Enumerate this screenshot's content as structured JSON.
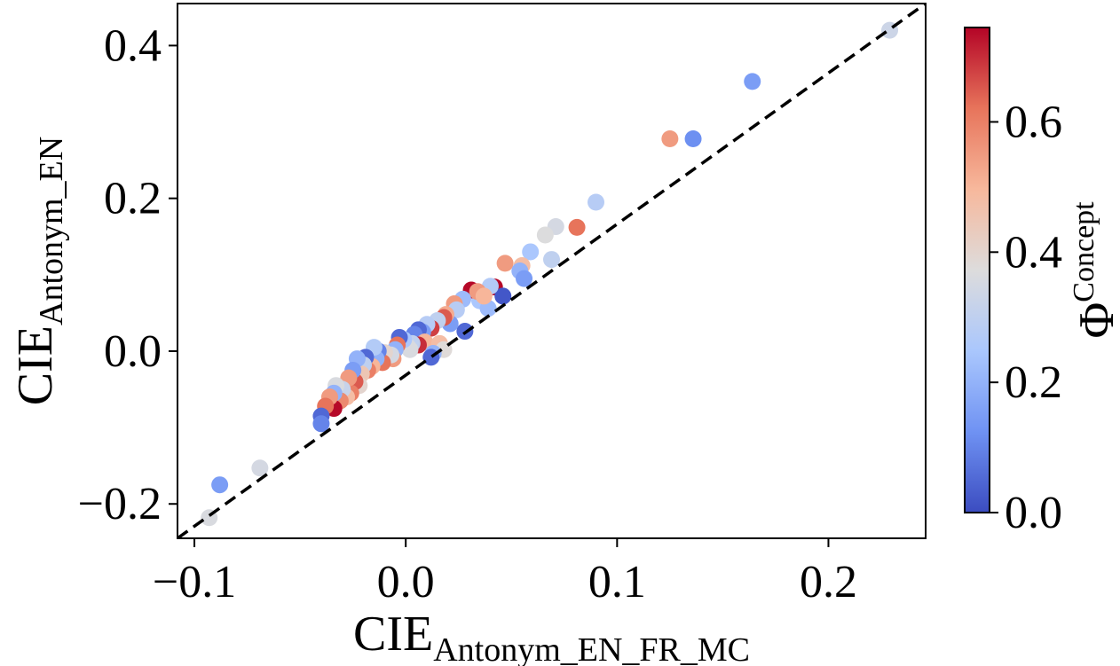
{
  "chart_data": {
    "type": "scatter",
    "xlabel": {
      "main": "CIE",
      "sub": "Antonym_EN_FR_MC"
    },
    "ylabel": {
      "main": "CIE",
      "sub": "Antonym_EN"
    },
    "xlim": [
      -0.108,
      0.246
    ],
    "ylim": [
      -0.245,
      0.455
    ],
    "xticks": [
      -0.1,
      0.0,
      0.1,
      0.2
    ],
    "xtick_labels": [
      "−0.1",
      "0.0",
      "0.1",
      "0.2"
    ],
    "yticks": [
      -0.2,
      0.0,
      0.2,
      0.4
    ],
    "ytick_labels": [
      "−0.2",
      "0.0",
      "0.2",
      "0.4"
    ],
    "reference_line": {
      "style": "dashed",
      "color": "#000000",
      "x": [
        -0.108,
        0.246
      ],
      "y": [
        -0.245,
        0.455
      ]
    },
    "colorbar": {
      "label_main": "Φ",
      "label_sup": "Concept",
      "range": [
        0.0,
        0.745
      ],
      "ticks": [
        0.0,
        0.2,
        0.4,
        0.6
      ],
      "tick_labels": [
        "0.0",
        "0.2",
        "0.4",
        "0.6"
      ],
      "colormap": "coolwarm",
      "colors": [
        "#3b4cc0",
        "#6f92f3",
        "#aac7fd",
        "#dddcdc",
        "#f7b89c",
        "#e7745b",
        "#b40426"
      ]
    },
    "grid": false,
    "points": [
      {
        "x": 0.229,
        "y": 0.42,
        "c": 0.33
      },
      {
        "x": 0.164,
        "y": 0.353,
        "c": 0.15
      },
      {
        "x": 0.136,
        "y": 0.278,
        "c": 0.12
      },
      {
        "x": 0.125,
        "y": 0.278,
        "c": 0.55
      },
      {
        "x": 0.09,
        "y": 0.195,
        "c": 0.28
      },
      {
        "x": 0.081,
        "y": 0.162,
        "c": 0.62
      },
      {
        "x": 0.071,
        "y": 0.163,
        "c": 0.35
      },
      {
        "x": 0.066,
        "y": 0.152,
        "c": 0.37
      },
      {
        "x": 0.069,
        "y": 0.12,
        "c": 0.3
      },
      {
        "x": 0.059,
        "y": 0.13,
        "c": 0.25
      },
      {
        "x": 0.055,
        "y": 0.112,
        "c": 0.48
      },
      {
        "x": 0.047,
        "y": 0.115,
        "c": 0.55
      },
      {
        "x": 0.054,
        "y": 0.105,
        "c": 0.2
      },
      {
        "x": 0.056,
        "y": 0.095,
        "c": 0.15
      },
      {
        "x": 0.042,
        "y": 0.084,
        "c": 0.74
      },
      {
        "x": 0.046,
        "y": 0.072,
        "c": 0.02
      },
      {
        "x": 0.04,
        "y": 0.085,
        "c": 0.27
      },
      {
        "x": 0.035,
        "y": 0.066,
        "c": 0.25
      },
      {
        "x": 0.039,
        "y": 0.056,
        "c": 0.22
      },
      {
        "x": 0.031,
        "y": 0.08,
        "c": 0.74
      },
      {
        "x": 0.034,
        "y": 0.078,
        "c": 0.55
      },
      {
        "x": 0.037,
        "y": 0.072,
        "c": 0.5
      },
      {
        "x": 0.027,
        "y": 0.068,
        "c": 0.22
      },
      {
        "x": 0.023,
        "y": 0.062,
        "c": 0.55
      },
      {
        "x": 0.024,
        "y": 0.054,
        "c": 0.28
      },
      {
        "x": 0.028,
        "y": 0.026,
        "c": 0.05
      },
      {
        "x": 0.021,
        "y": 0.036,
        "c": 0.15
      },
      {
        "x": 0.019,
        "y": 0.048,
        "c": 0.52
      },
      {
        "x": 0.018,
        "y": 0.044,
        "c": 0.65
      },
      {
        "x": 0.015,
        "y": 0.04,
        "c": 0.3
      },
      {
        "x": 0.012,
        "y": 0.03,
        "c": 0.68
      },
      {
        "x": 0.01,
        "y": 0.035,
        "c": 0.28
      },
      {
        "x": 0.008,
        "y": 0.025,
        "c": 0.15
      },
      {
        "x": 0.006,
        "y": 0.028,
        "c": 0.05
      },
      {
        "x": 0.004,
        "y": 0.022,
        "c": 0.1
      },
      {
        "x": 0.009,
        "y": 0.012,
        "c": 0.5
      },
      {
        "x": 0.006,
        "y": 0.008,
        "c": 0.7
      },
      {
        "x": 0.016,
        "y": 0.01,
        "c": 0.48
      },
      {
        "x": 0.018,
        "y": 0.002,
        "c": 0.38
      },
      {
        "x": 0.013,
        "y": -0.003,
        "c": 0.2
      },
      {
        "x": 0.012,
        "y": -0.008,
        "c": 0.05
      },
      {
        "x": 0.003,
        "y": 0.01,
        "c": 0.3
      },
      {
        "x": 0.001,
        "y": 0.006,
        "c": 0.35
      },
      {
        "x": 0.002,
        "y": 0.002,
        "c": 0.36
      },
      {
        "x": -0.001,
        "y": 0.015,
        "c": 0.25
      },
      {
        "x": -0.003,
        "y": 0.018,
        "c": 0.05
      },
      {
        "x": -0.004,
        "y": 0.008,
        "c": 0.62
      },
      {
        "x": -0.005,
        "y": 0.002,
        "c": 0.2
      },
      {
        "x": -0.006,
        "y": -0.01,
        "c": 0.55
      },
      {
        "x": -0.007,
        "y": -0.005,
        "c": 0.35
      },
      {
        "x": -0.01,
        "y": -0.002,
        "c": 0.4
      },
      {
        "x": -0.011,
        "y": -0.015,
        "c": 0.62
      },
      {
        "x": -0.013,
        "y": 0.0,
        "c": 0.1
      },
      {
        "x": -0.014,
        "y": -0.01,
        "c": 0.2
      },
      {
        "x": -0.015,
        "y": 0.005,
        "c": 0.27
      },
      {
        "x": -0.016,
        "y": -0.02,
        "c": 0.5
      },
      {
        "x": -0.018,
        "y": -0.025,
        "c": 0.6
      },
      {
        "x": -0.019,
        "y": -0.008,
        "c": 0.05
      },
      {
        "x": -0.02,
        "y": -0.018,
        "c": 0.3
      },
      {
        "x": -0.021,
        "y": -0.03,
        "c": 0.45
      },
      {
        "x": -0.022,
        "y": -0.045,
        "c": 0.4
      },
      {
        "x": -0.023,
        "y": -0.01,
        "c": 0.2
      },
      {
        "x": -0.024,
        "y": -0.04,
        "c": 0.65
      },
      {
        "x": -0.025,
        "y": -0.025,
        "c": 0.15
      },
      {
        "x": -0.026,
        "y": -0.055,
        "c": 0.6
      },
      {
        "x": -0.027,
        "y": -0.035,
        "c": 0.55
      },
      {
        "x": -0.028,
        "y": -0.06,
        "c": 0.48
      },
      {
        "x": -0.03,
        "y": -0.05,
        "c": 0.32
      },
      {
        "x": -0.031,
        "y": -0.065,
        "c": 0.58
      },
      {
        "x": -0.033,
        "y": -0.045,
        "c": 0.36
      },
      {
        "x": -0.034,
        "y": -0.055,
        "c": 0.2
      },
      {
        "x": -0.034,
        "y": -0.075,
        "c": 0.74
      },
      {
        "x": -0.036,
        "y": -0.06,
        "c": 0.55
      },
      {
        "x": -0.038,
        "y": -0.072,
        "c": 0.62
      },
      {
        "x": -0.04,
        "y": -0.085,
        "c": 0.05
      },
      {
        "x": -0.04,
        "y": -0.095,
        "c": 0.1
      },
      {
        "x": -0.088,
        "y": -0.175,
        "c": 0.15
      },
      {
        "x": -0.069,
        "y": -0.153,
        "c": 0.35
      },
      {
        "x": -0.093,
        "y": -0.218,
        "c": 0.36
      }
    ]
  }
}
